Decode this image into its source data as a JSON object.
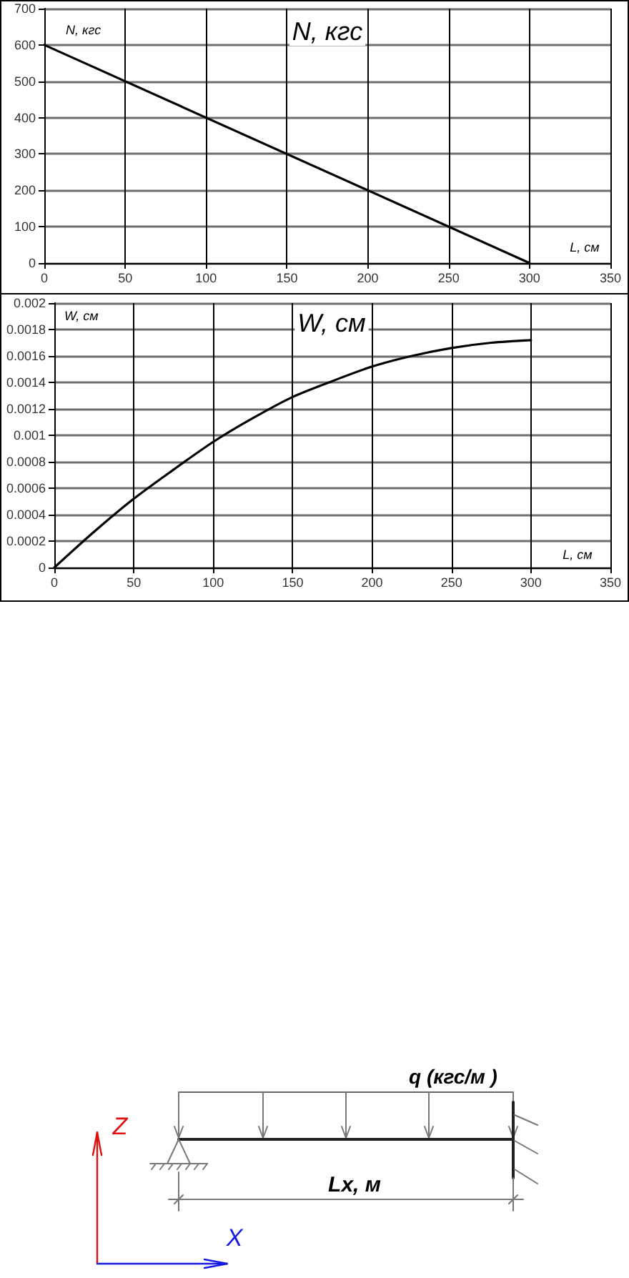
{
  "chart_data": [
    {
      "type": "line",
      "title": "N, кгс",
      "ylabel": "N, кгс",
      "xlabel": "L, см",
      "x": [
        0,
        300
      ],
      "values": [
        600,
        0
      ],
      "color": "#000000",
      "xlim": [
        0,
        350
      ],
      "xticks": [
        0,
        50,
        100,
        150,
        200,
        250,
        300,
        350
      ],
      "ylim": [
        0,
        700
      ],
      "yticks": [
        0,
        100,
        200,
        300,
        400,
        500,
        600,
        700
      ],
      "grid": true,
      "marker": "none",
      "line_style": "solid"
    },
    {
      "type": "line",
      "title": "W, см",
      "ylabel": "W, см",
      "xlabel": "L, см",
      "x": [
        0,
        25,
        50,
        75,
        100,
        125,
        150,
        175,
        200,
        225,
        250,
        275,
        300
      ],
      "values": [
        0,
        0.00027,
        0.00052,
        0.00074,
        0.00095,
        0.00113,
        0.00129,
        0.00141,
        0.00152,
        0.0016,
        0.00166,
        0.0017,
        0.00172
      ],
      "color": "#000000",
      "xlim": [
        0,
        350
      ],
      "xticks": [
        0,
        50,
        100,
        150,
        200,
        250,
        300,
        350
      ],
      "ylim": [
        0,
        0.002
      ],
      "yticks": [
        0,
        0.0002,
        0.0004,
        0.0006,
        0.0008,
        0.001,
        0.0012,
        0.0014,
        0.0016,
        0.0018,
        0.002
      ],
      "grid": true,
      "marker": "none",
      "line_style": "solid"
    },
    {
      "type": "other",
      "annotations": [
        "q (кгс/м )",
        "Lx, м",
        "Z",
        "X"
      ]
    }
  ]
}
